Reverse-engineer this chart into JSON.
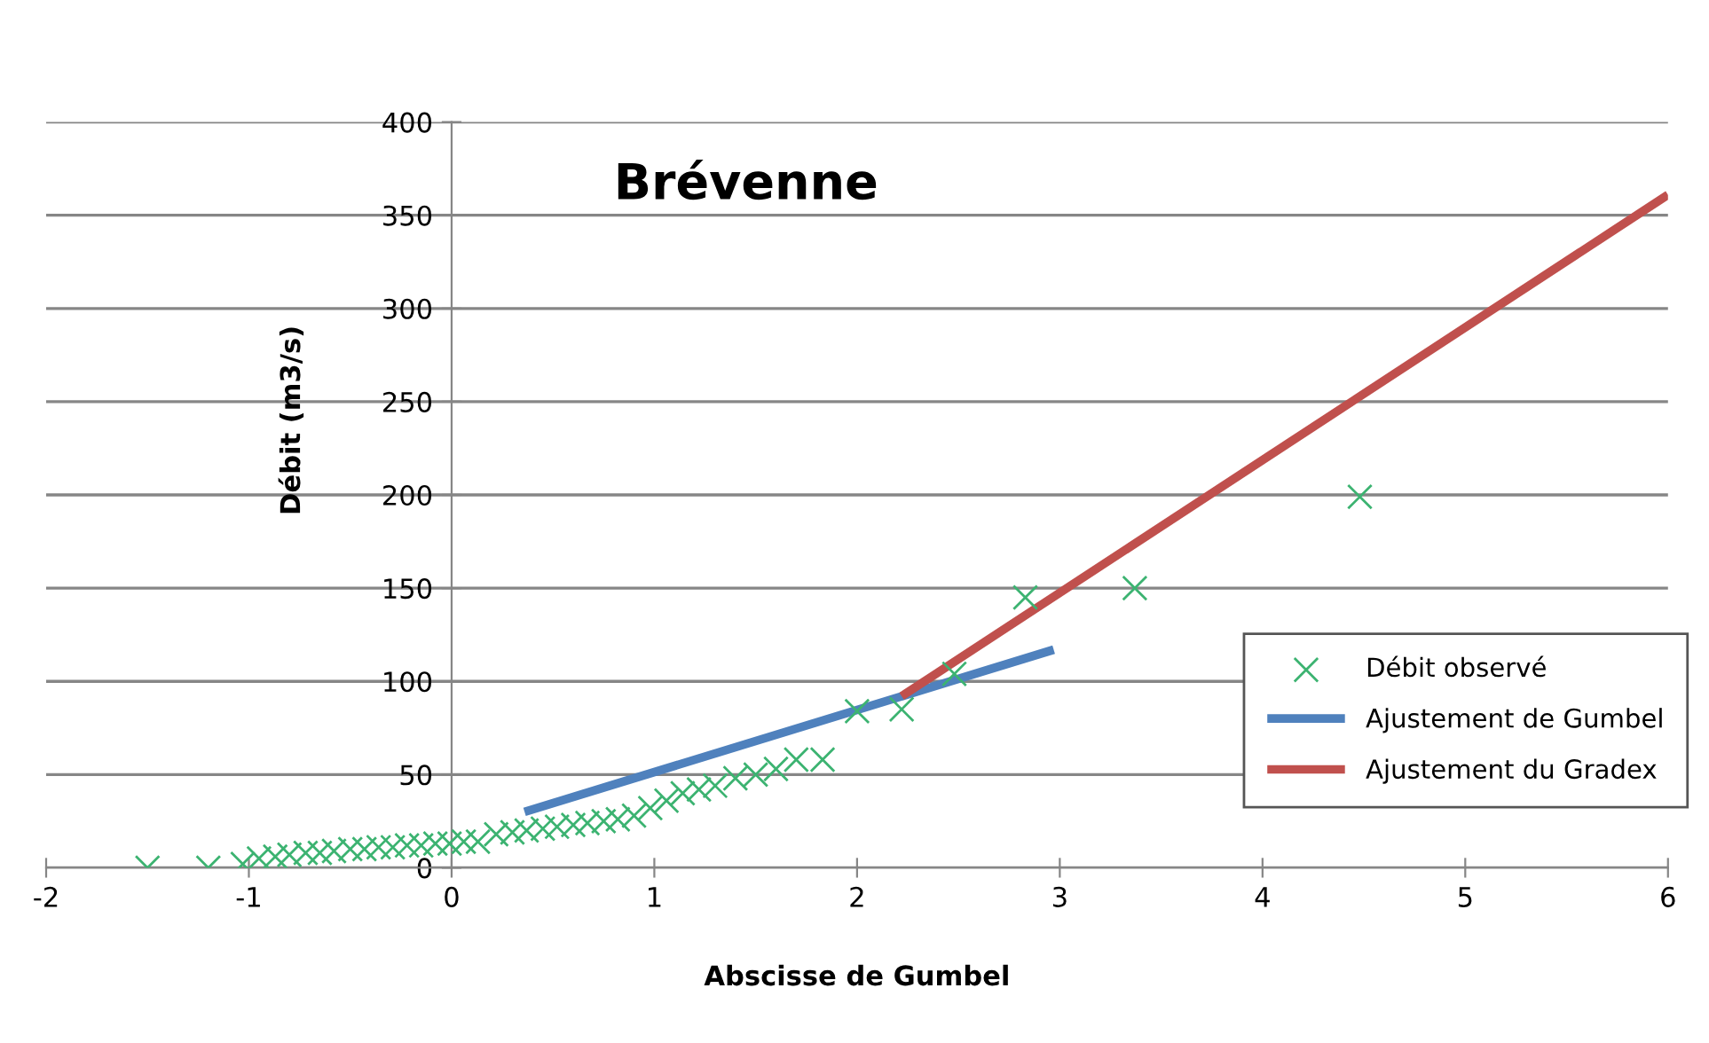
{
  "chart_data": {
    "type": "scatter",
    "title": "Brévenne",
    "xlabel": "Abscisse de Gumbel",
    "ylabel": "Débit (m3/s)",
    "xlim": [
      -2,
      6
    ],
    "xticks": [
      -2,
      -1,
      0,
      1,
      2,
      3,
      4,
      5,
      6
    ],
    "ylim": [
      0,
      400
    ],
    "yticks": [
      0,
      50,
      100,
      150,
      200,
      250,
      300,
      350,
      400
    ],
    "grid": "y",
    "legend": "bottom right",
    "series": [
      {
        "name": "Débit observé",
        "marker": "cross",
        "color": "#3cb371",
        "x": [
          -1.5,
          -1.2,
          -1.03,
          -0.95,
          -0.87,
          -0.8,
          -0.72,
          -0.65,
          -0.58,
          -0.5,
          -0.43,
          -0.36,
          -0.29,
          -0.22,
          -0.15,
          -0.08,
          -0.01,
          0.06,
          0.13,
          0.22,
          0.3,
          0.37,
          0.45,
          0.52,
          0.6,
          0.67,
          0.75,
          0.82,
          0.9,
          0.98,
          1.06,
          1.14,
          1.22,
          1.3,
          1.4,
          1.5,
          1.6,
          1.7,
          1.83,
          2.0,
          2.22,
          2.48,
          2.83,
          3.37,
          4.48
        ],
        "values": [
          0,
          0,
          2,
          5,
          6,
          7,
          8,
          8,
          9,
          10,
          10,
          11,
          11,
          12,
          12,
          13,
          13,
          14,
          14,
          18,
          19,
          20,
          21,
          22,
          23,
          24,
          25,
          26,
          28,
          32,
          36,
          40,
          42,
          44,
          48,
          50,
          53,
          58,
          58,
          84,
          85,
          104,
          145,
          150,
          199
        ]
      },
      {
        "name": "Ajustement de Gumbel",
        "type": "line",
        "marker": "none",
        "line_style": "solid",
        "color": "#4f81bd",
        "x": [
          0.36,
          2.97
        ],
        "values": [
          30,
          117
        ]
      },
      {
        "name": "Ajustement du Gradex",
        "type": "line",
        "marker": "none",
        "line_style": "solid",
        "color": "#c0504d",
        "x": [
          2.22,
          6
        ],
        "values": [
          92,
          361
        ]
      }
    ]
  }
}
